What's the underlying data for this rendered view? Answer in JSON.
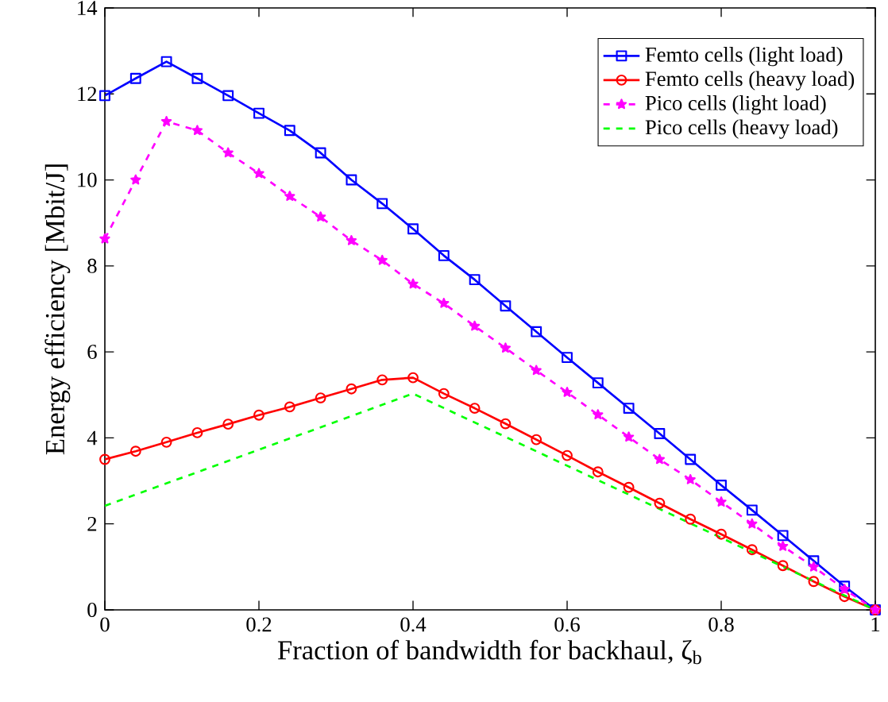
{
  "chart_data": {
    "type": "line",
    "xlabel": "Fraction of bandwidth for backhaul, ζ$_{b}$",
    "ylabel": "Energy efficiency [Mbit/J]",
    "xlim": [
      0,
      1
    ],
    "ylim": [
      0,
      14
    ],
    "xticks": [
      0,
      0.2,
      0.4,
      0.6,
      0.8,
      1
    ],
    "yticks": [
      0,
      2,
      4,
      6,
      8,
      10,
      12,
      14
    ],
    "grid": false,
    "legend": "top right",
    "x": [
      0,
      0.04,
      0.08,
      0.12,
      0.16,
      0.2,
      0.24,
      0.28,
      0.32,
      0.36,
      0.4,
      0.44,
      0.48,
      0.52,
      0.56,
      0.6,
      0.64,
      0.68,
      0.72,
      0.76,
      0.8,
      0.84,
      0.88,
      0.92,
      0.96,
      1
    ],
    "series": [
      {
        "name": "Femto cells (light load)",
        "color": "#0000ff",
        "marker": "square",
        "line_style": "solid",
        "values": [
          11.96,
          12.36,
          12.75,
          12.36,
          11.96,
          11.55,
          11.15,
          10.63,
          10.0,
          9.45,
          8.86,
          8.24,
          7.68,
          7.07,
          6.47,
          5.87,
          5.28,
          4.69,
          4.1,
          3.5,
          2.9,
          2.32,
          1.73,
          1.14,
          0.55,
          0
        ]
      },
      {
        "name": "Femto cells (heavy load)",
        "color": "#ff0000",
        "marker": "circle",
        "line_style": "solid",
        "values": [
          3.5,
          3.69,
          3.9,
          4.12,
          4.32,
          4.53,
          4.72,
          4.93,
          5.14,
          5.35,
          5.4,
          5.03,
          4.69,
          4.33,
          3.96,
          3.59,
          3.21,
          2.85,
          2.48,
          2.11,
          1.76,
          1.4,
          1.03,
          0.66,
          0.31,
          0
        ]
      },
      {
        "name": "Pico cells (light load)",
        "color": "#ff00ff",
        "marker": "star",
        "line_style": "dashed",
        "values": [
          8.63,
          10.0,
          11.36,
          11.15,
          10.63,
          10.15,
          9.62,
          9.14,
          8.59,
          8.13,
          7.58,
          7.13,
          6.6,
          6.09,
          5.57,
          5.06,
          4.54,
          4.02,
          3.5,
          3.03,
          2.51,
          2.0,
          1.48,
          1.0,
          0.48,
          0
        ]
      },
      {
        "name": "Pico cells (heavy load)",
        "color": "#00ff00",
        "marker": "none",
        "line_style": "dashed",
        "x": [
          0,
          0.4,
          1
        ],
        "values": [
          2.42,
          5.03,
          0
        ]
      }
    ]
  }
}
